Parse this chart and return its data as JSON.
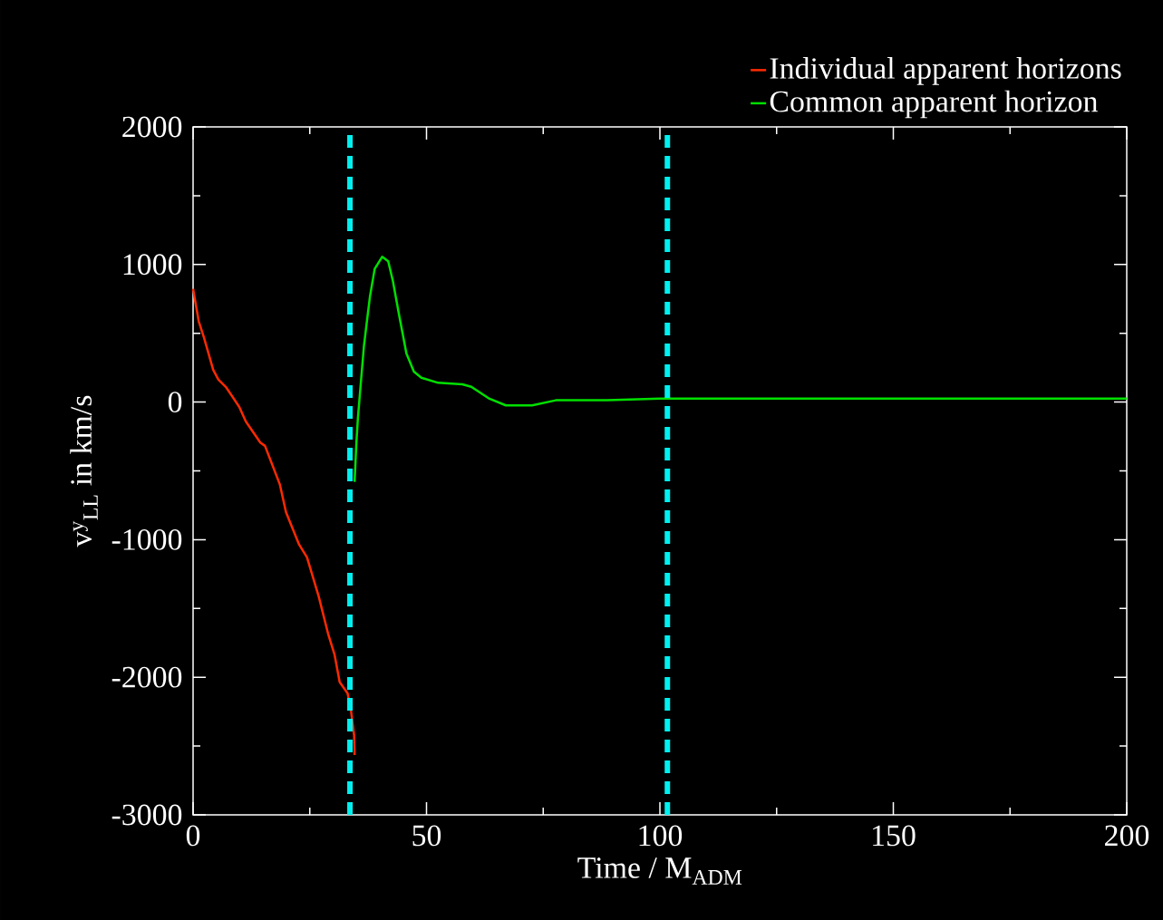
{
  "chart_data": {
    "type": "line",
    "xlabel": "Time / M$_{ADM}$",
    "ylabel": "v$^{y}$$_{LL}$ in km/s",
    "xlim": [
      0,
      200
    ],
    "ylim": [
      -3000,
      2000
    ],
    "xticks": [
      0,
      50,
      100,
      150,
      200
    ],
    "yticks": [
      -3000,
      -2000,
      -1000,
      0,
      1000,
      2000
    ],
    "legend": "top right",
    "series": [
      {
        "name": "Individual apparent horizons",
        "color": "#ff2a00",
        "x": [
          0,
          1.2,
          2.3,
          4.3,
          5.4,
          7.1,
          9.9,
          11.3,
          14.4,
          15.4,
          18.6,
          19.9,
          22.7,
          24.4,
          26.9,
          29.0,
          30.3,
          31.4,
          33.1,
          33.8,
          34.5,
          34.6
        ],
        "values": [
          823,
          588,
          472,
          235,
          165,
          106,
          -36,
          -141,
          -294,
          -318,
          -600,
          -800,
          -1035,
          -1129,
          -1412,
          -1694,
          -1835,
          -2035,
          -2117,
          -2235,
          -2423,
          -2565
        ]
      },
      {
        "name": "Common apparent horizon",
        "color": "#00e000",
        "x": [
          34.6,
          35.0,
          35.3,
          36.0,
          36.6,
          37.3,
          37.9,
          38.9,
          40.5,
          41.8,
          42.8,
          44.1,
          45.7,
          47.3,
          48.9,
          52.5,
          57.7,
          59.6,
          63.5,
          67.0,
          72.6,
          77.7,
          88.7,
          100,
          150,
          200
        ],
        "values": [
          -580,
          -284,
          -119,
          167,
          408,
          605,
          770,
          968,
          1056,
          1023,
          880,
          638,
          353,
          221,
          177,
          140,
          129,
          111,
          24,
          -24,
          -24,
          13,
          13,
          25,
          25,
          25
        ]
      }
    ],
    "ref_lines": [
      {
        "axis": "x",
        "value": 33.6,
        "color": "#00f0f0",
        "line_style": "dashed"
      },
      {
        "axis": "x",
        "value": 101.6,
        "color": "#00f0f0",
        "line_style": "dashed"
      }
    ]
  }
}
